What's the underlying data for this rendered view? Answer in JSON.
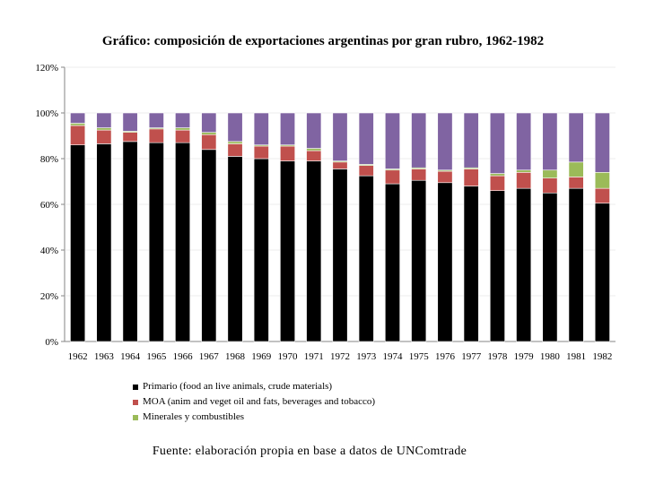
{
  "chart_data": {
    "type": "bar",
    "stacked": true,
    "title": "Gráfico: composición de exportaciones argentinas por gran rubro, 1962-1982",
    "xlabel": "",
    "ylabel": "",
    "ylim": [
      0,
      120
    ],
    "yticks": [
      "0%",
      "20%",
      "40%",
      "60%",
      "80%",
      "100%",
      "120%"
    ],
    "ytick_values": [
      0,
      20,
      40,
      60,
      80,
      100,
      120
    ],
    "categories": [
      "1962",
      "1963",
      "1964",
      "1965",
      "1966",
      "1967",
      "1968",
      "1969",
      "1970",
      "1971",
      "1972",
      "1973",
      "1974",
      "1975",
      "1976",
      "1977",
      "1978",
      "1979",
      "1980",
      "1981",
      "1982"
    ],
    "series": [
      {
        "name": "Primario (food an live animals, crude materials)",
        "color": "#000000",
        "values": [
          86,
          86.5,
          87.5,
          87,
          87,
          84,
          81,
          80,
          79,
          79,
          75.5,
          72.5,
          69,
          70.5,
          69.5,
          68,
          66,
          67,
          65,
          67,
          60.5
        ]
      },
      {
        "name": "MOA (anim and veget oil and fats, beverages and tobacco)",
        "color": "#c0504d",
        "values": [
          8.5,
          6,
          4,
          6,
          5.5,
          6.5,
          5.5,
          5.5,
          6.5,
          4.5,
          3,
          4.5,
          6,
          5,
          5,
          7.5,
          6.5,
          7,
          6.5,
          5,
          6.5
        ]
      },
      {
        "name": "Minerales y combustibles",
        "color": "#9bbb59",
        "values": [
          1,
          1,
          0.5,
          0.5,
          1,
          1,
          1,
          0.5,
          0.5,
          1,
          0.5,
          0.5,
          0.5,
          0.5,
          0.5,
          0.5,
          1,
          1,
          3.5,
          6.5,
          7
        ]
      },
      {
        "name": "",
        "color": "#8064a2",
        "values": [
          4.5,
          6.5,
          8,
          6.5,
          6.5,
          8.5,
          12.5,
          14,
          14,
          15.5,
          21,
          22.5,
          24.5,
          24,
          25,
          24,
          26.5,
          25,
          25,
          21.5,
          26
        ]
      }
    ],
    "legend_placement": "bottom",
    "grid": false
  },
  "legend": {
    "items": [
      {
        "label": "Primario (food an live animals, crude materials)",
        "color": "#000000"
      },
      {
        "label": "MOA (anim and veget oil and fats, beverages and tobacco)",
        "color": "#c0504d"
      },
      {
        "label": "Minerales y combustibles",
        "color": "#9bbb59"
      }
    ]
  },
  "source": "Fuente: elaboración propia en base a datos de UNComtrade"
}
